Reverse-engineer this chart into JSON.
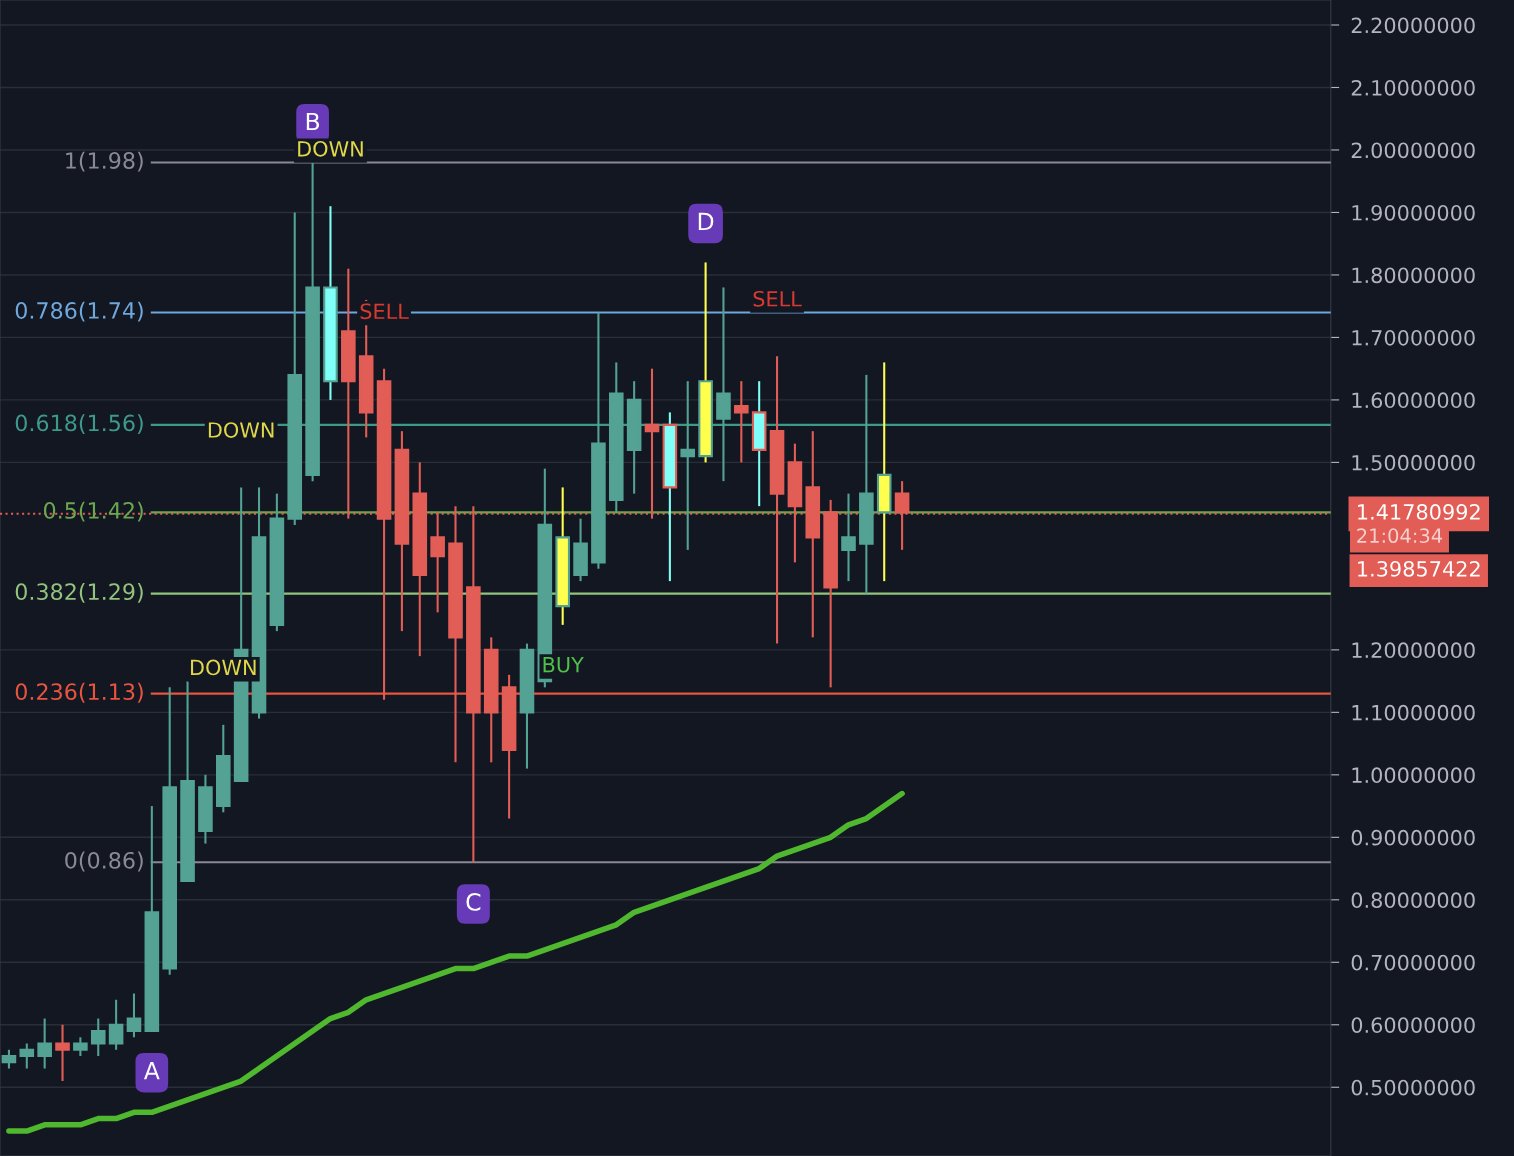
{
  "chart_data": {
    "type": "candlestick",
    "categories": [
      null,
      null,
      null,
      null,
      null,
      null,
      null,
      null,
      null,
      null,
      null,
      null,
      null,
      null,
      null,
      null,
      null,
      null,
      null,
      null,
      null,
      null,
      null,
      null,
      null,
      null,
      null,
      null,
      null,
      null,
      null,
      null,
      null,
      null,
      null,
      null,
      null,
      null,
      null,
      null,
      null,
      null,
      null,
      null,
      null,
      null,
      null,
      null,
      null,
      null,
      null
    ],
    "ohlc": [
      [
        0.54,
        0.56,
        0.53,
        0.55
      ],
      [
        0.55,
        0.57,
        0.53,
        0.56
      ],
      [
        0.55,
        0.61,
        0.53,
        0.57
      ],
      [
        0.57,
        0.6,
        0.51,
        0.56
      ],
      [
        0.56,
        0.58,
        0.55,
        0.57
      ],
      [
        0.57,
        0.61,
        0.55,
        0.59
      ],
      [
        0.57,
        0.64,
        0.56,
        0.6
      ],
      [
        0.59,
        0.65,
        0.58,
        0.61
      ],
      [
        0.59,
        0.95,
        0.59,
        0.78
      ],
      [
        0.69,
        1.14,
        0.68,
        0.98
      ],
      [
        0.83,
        1.15,
        0.83,
        0.99
      ],
      [
        0.91,
        1.0,
        0.89,
        0.98
      ],
      [
        0.95,
        1.08,
        0.94,
        1.03
      ],
      [
        0.99,
        1.46,
        0.99,
        1.2
      ],
      [
        1.1,
        1.46,
        1.09,
        1.38
      ],
      [
        1.24,
        1.45,
        1.23,
        1.41
      ],
      [
        1.41,
        1.9,
        1.4,
        1.64
      ],
      [
        1.48,
        1.98,
        1.47,
        1.78
      ],
      [
        1.63,
        1.91,
        1.6,
        1.78
      ],
      [
        1.71,
        1.81,
        1.41,
        1.63
      ],
      [
        1.67,
        1.76,
        1.54,
        1.58
      ],
      [
        1.63,
        1.65,
        1.12,
        1.41
      ],
      [
        1.52,
        1.55,
        1.23,
        1.37
      ],
      [
        1.45,
        1.5,
        1.19,
        1.32
      ],
      [
        1.38,
        1.42,
        1.26,
        1.35
      ],
      [
        1.37,
        1.43,
        1.02,
        1.22
      ],
      [
        1.3,
        1.43,
        0.86,
        1.1
      ],
      [
        1.2,
        1.22,
        1.02,
        1.1
      ],
      [
        1.14,
        1.16,
        0.93,
        1.04
      ],
      [
        1.1,
        1.21,
        1.01,
        1.2
      ],
      [
        1.15,
        1.49,
        1.14,
        1.4
      ],
      [
        1.27,
        1.46,
        1.24,
        1.38
      ],
      [
        1.32,
        1.41,
        1.31,
        1.37
      ],
      [
        1.34,
        1.74,
        1.33,
        1.53
      ],
      [
        1.44,
        1.66,
        1.42,
        1.61
      ],
      [
        1.52,
        1.63,
        1.45,
        1.6
      ],
      [
        1.56,
        1.65,
        1.41,
        1.55
      ],
      [
        1.56,
        1.58,
        1.31,
        1.46
      ],
      [
        1.51,
        1.63,
        1.36,
        1.52
      ],
      [
        1.51,
        1.82,
        1.5,
        1.63
      ],
      [
        1.57,
        1.78,
        1.47,
        1.61
      ],
      [
        1.59,
        1.63,
        1.5,
        1.58
      ],
      [
        1.58,
        1.63,
        1.43,
        1.52
      ],
      [
        1.55,
        1.67,
        1.21,
        1.45
      ],
      [
        1.5,
        1.53,
        1.34,
        1.43
      ],
      [
        1.46,
        1.55,
        1.22,
        1.38
      ],
      [
        1.42,
        1.44,
        1.14,
        1.3
      ],
      [
        1.36,
        1.45,
        1.31,
        1.38
      ],
      [
        1.37,
        1.64,
        1.29,
        1.45
      ],
      [
        1.42,
        1.66,
        1.31,
        1.48
      ],
      [
        1.45,
        1.47,
        1.36,
        1.42
      ]
    ],
    "colors": [
      "#53a294",
      "#53a294",
      "#53a294",
      "#e25d56",
      "#53a294",
      "#53a294",
      "#53a294",
      "#53a294",
      "#53a294",
      "#53a294",
      "#53a294",
      "#53a294",
      "#53a294",
      "#53a294",
      "#53a294",
      "#53a294",
      "#53a294",
      "#53a294",
      "#7ffff7",
      "#e25d56",
      "#e25d56",
      "#e25d56",
      "#e25d56",
      "#e25d56",
      "#e25d56",
      "#e25d56",
      "#e25d56",
      "#e25d56",
      "#e25d56",
      "#53a294",
      "#53a294",
      "#ffff4d",
      "#53a294",
      "#53a294",
      "#53a294",
      "#53a294",
      "#e25d56",
      "#7ffff7",
      "#53a294",
      "#ffff4d",
      "#53a294",
      "#e25d56",
      "#7ffff7",
      "#e25d56",
      "#e25d56",
      "#e25d56",
      "#e25d56",
      "#53a294",
      "#53a294",
      "#ffff4d",
      "#e25d56"
    ],
    "series": [
      {
        "type": "line",
        "color": "#4fb82e",
        "values": [
          0.43,
          0.43,
          0.44,
          0.44,
          0.44,
          0.45,
          0.45,
          0.46,
          0.46,
          0.47,
          0.48,
          0.49,
          0.5,
          0.51,
          0.53,
          0.55,
          0.57,
          0.59,
          0.61,
          0.62,
          0.64,
          0.65,
          0.66,
          0.67,
          0.68,
          0.69,
          0.69,
          0.7,
          0.71,
          0.71,
          0.72,
          0.73,
          0.74,
          0.75,
          0.76,
          0.78,
          0.79,
          0.8,
          0.81,
          0.82,
          0.83,
          0.84,
          0.85,
          0.87,
          0.88,
          0.89,
          0.9,
          0.92,
          0.93,
          0.95,
          0.97
        ]
      }
    ],
    "ylim": [
      0.39,
      2.24
    ],
    "yticks": [
      {
        "value": 0.5,
        "label": "0.50000000"
      },
      {
        "value": 0.6,
        "label": "0.60000000"
      },
      {
        "value": 0.7,
        "label": "0.70000000"
      },
      {
        "value": 0.8,
        "label": "0.80000000"
      },
      {
        "value": 0.9,
        "label": "0.90000000"
      },
      {
        "value": 1.0,
        "label": "1.00000000"
      },
      {
        "value": 1.1,
        "label": "1.10000000"
      },
      {
        "value": 1.2,
        "label": "1.20000000"
      },
      {
        "value": 1.5,
        "label": "1.50000000"
      },
      {
        "value": 1.6,
        "label": "1.60000000"
      },
      {
        "value": 1.7,
        "label": "1.70000000"
      },
      {
        "value": 1.8,
        "label": "1.80000000"
      },
      {
        "value": 1.9,
        "label": "1.90000000"
      },
      {
        "value": 2.0,
        "label": "2.00000000"
      },
      {
        "value": 2.1,
        "label": "2.10000000"
      },
      {
        "value": 2.2,
        "label": "2.20000000"
      }
    ],
    "grid": true,
    "ref_lines": [
      {
        "axis": "y",
        "value": 1.98,
        "label": "1(1.98)",
        "color": "#8a8a94",
        "line_style": "solid"
      },
      {
        "axis": "y",
        "value": 1.74,
        "label": "0.786(1.74)",
        "color": "#6fa8dc",
        "line_style": "solid"
      },
      {
        "axis": "y",
        "value": 1.56,
        "label": "0.618(1.56)",
        "color": "#3d9a8b",
        "line_style": "solid"
      },
      {
        "axis": "y",
        "value": 1.42,
        "label": "0.5(1.42)",
        "color": "#6aa84f",
        "line_style": "solid"
      },
      {
        "axis": "y",
        "value": 1.29,
        "label": "0.382(1.29)",
        "color": "#93c47d",
        "line_style": "solid"
      },
      {
        "axis": "y",
        "value": 1.13,
        "label": "0.236(1.13)",
        "color": "#e8553f",
        "line_style": "solid"
      },
      {
        "axis": "y",
        "value": 0.86,
        "label": "0(0.86)",
        "color": "#8a8a94",
        "line_style": "solid"
      },
      {
        "axis": "y",
        "value": 1.41780992,
        "label": "1.41780992",
        "color": "#e25d56",
        "line_style": "dotted"
      }
    ],
    "annotations": [
      {
        "text": "A",
        "y": 0.59
      },
      {
        "text": "B",
        "y": 1.98
      },
      {
        "text": "C",
        "y": 0.86
      },
      {
        "text": "D",
        "y": 1.82
      },
      {
        "text": "DOWN",
        "y": 1.91
      },
      {
        "text": "DOWN",
        "y": 1.46
      },
      {
        "text": "DOWN",
        "y": 1.08
      },
      {
        "text": "SELL",
        "y": 1.65
      },
      {
        "text": "SELL",
        "y": 1.67
      },
      {
        "text": "BUY",
        "y": 1.24
      },
      "21:04:34",
      "1.39857422"
    ]
  }
}
